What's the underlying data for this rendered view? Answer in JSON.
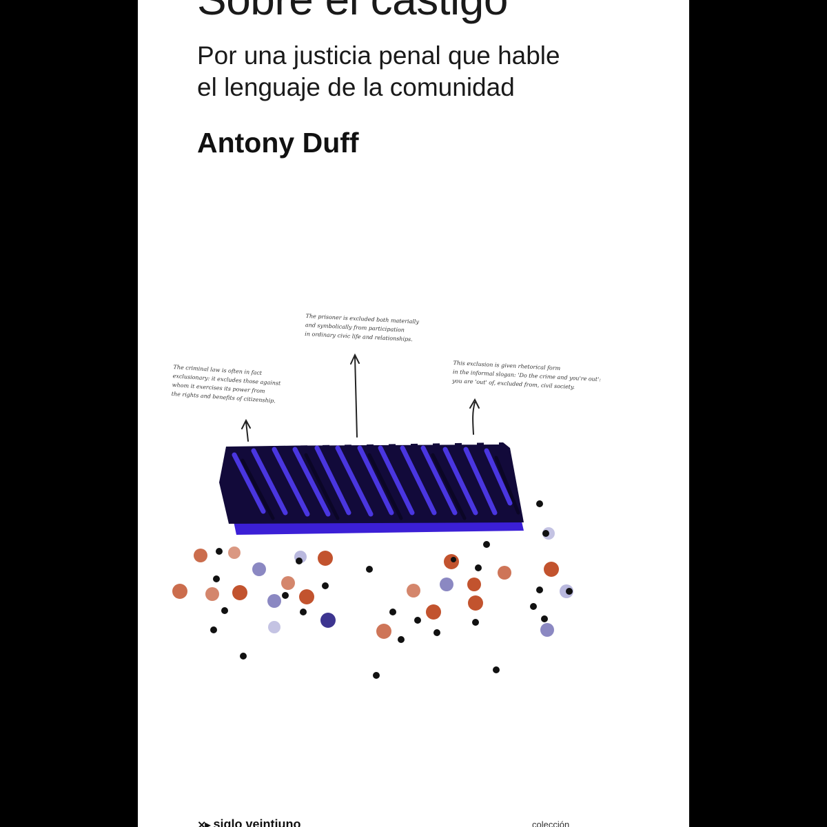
{
  "cover": {
    "title": "Sobre el castigo",
    "subtitle_line1": "Por una justicia penal que hable",
    "subtitle_line2": "el lenguaje de la comunidad",
    "author": "Antony Duff",
    "publisher": "siglo veintiuno",
    "collection": "colección"
  },
  "notes": {
    "left": [
      "The criminal law is often in fact",
      "exclusionary: it excludes those against",
      "whom it exercises its power from",
      "the rights and benefits of citizenship."
    ],
    "center": [
      "The prisoner is excluded both materially",
      "and symbolically from participation",
      "in ordinary civic life and relationships."
    ],
    "right": [
      "This exclusion is given rhetorical form",
      "in the informal slogan: 'Do the crime and you're out':",
      "you are 'out' of, excluded from, civil society."
    ]
  },
  "colors": {
    "background": "#000000",
    "cover": "#ffffff",
    "block_blue": "#3b1fd6",
    "block_dark": "#120a3a",
    "dot_orange": "#c2532e",
    "dot_blue": "#5a55a8",
    "dot_black": "#111111"
  }
}
